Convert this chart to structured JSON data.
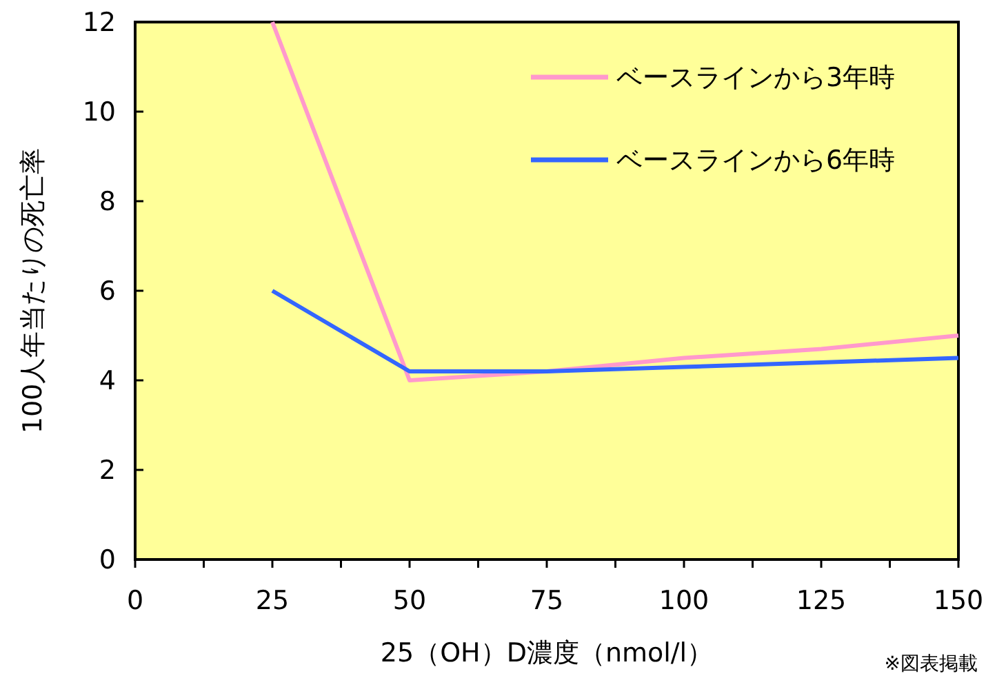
{
  "chart_data": {
    "type": "line",
    "xlabel": "25（OH）D濃度（nmol/l）",
    "ylabel": "100人年当たりの死亡率",
    "x": [
      25,
      50,
      75,
      100,
      125,
      150
    ],
    "series": [
      {
        "name": "ベースラインから3年時",
        "color": "#ff99cc",
        "values": [
          12,
          4.0,
          4.2,
          4.5,
          4.7,
          5.0
        ]
      },
      {
        "name": "ベースラインから6年時",
        "color": "#3366ff",
        "values": [
          6,
          4.2,
          4.2,
          4.3,
          4.4,
          4.5
        ]
      }
    ],
    "xlim": [
      0,
      150
    ],
    "xticks": [
      0,
      {
        "value": 12.5,
        "label": null
      },
      25,
      {
        "value": 37.5,
        "label": null
      },
      50,
      {
        "value": 62.5,
        "label": null
      },
      75,
      {
        "value": 87.5,
        "label": null
      },
      100,
      {
        "value": 112.5,
        "label": null
      },
      125,
      {
        "value": 137.5,
        "label": null
      },
      150
    ],
    "ylim": [
      0,
      12
    ],
    "yticks": [
      0,
      2,
      4,
      6,
      8,
      10,
      12
    ],
    "grid": false,
    "legend": "top right",
    "marker": "none",
    "line_style": "solid",
    "annotations": [
      "※図表掲載"
    ]
  }
}
